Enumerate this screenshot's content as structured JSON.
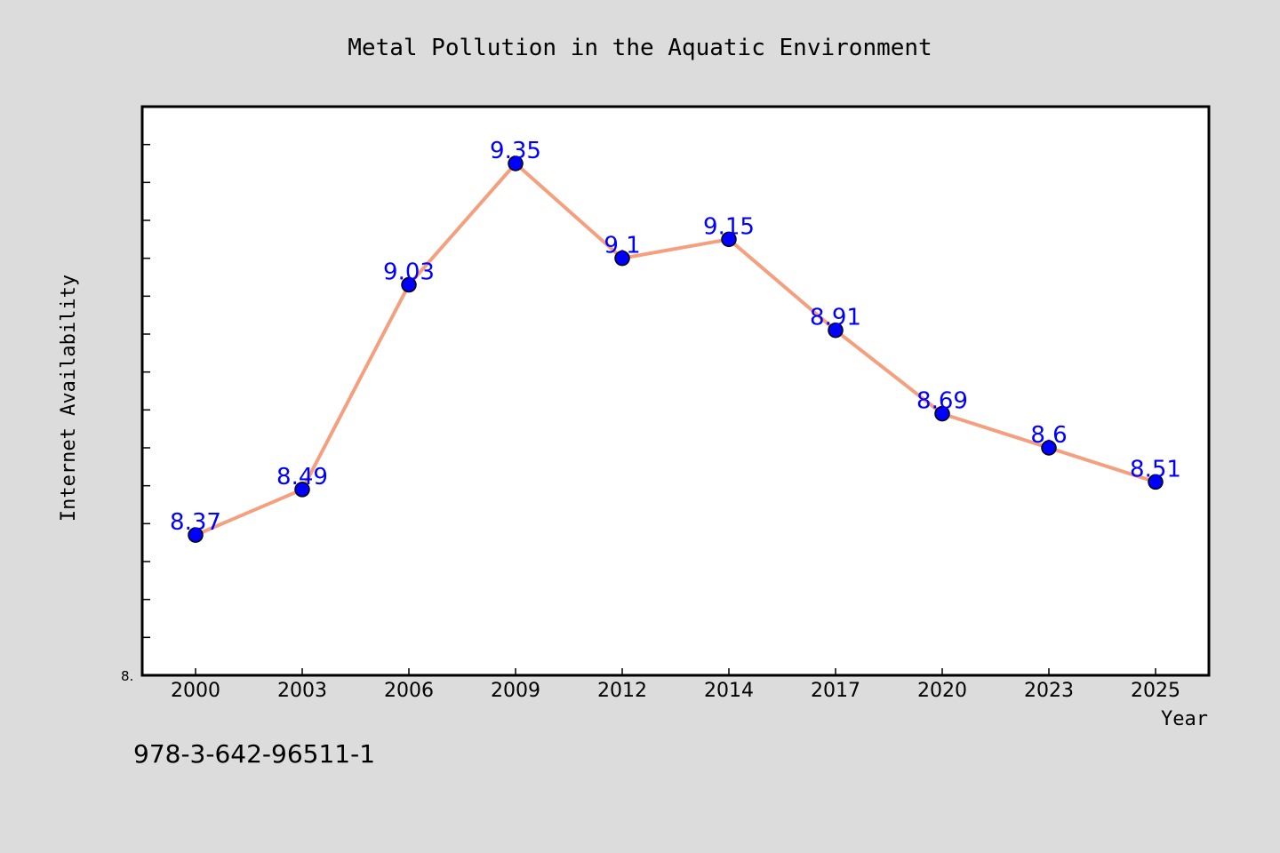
{
  "chart_data": {
    "type": "line",
    "title": "Metal Pollution in the Aquatic Environment",
    "xlabel": "Year",
    "ylabel": "Internet Availability",
    "categories": [
      "2000",
      "2003",
      "2006",
      "2009",
      "2012",
      "2014",
      "2017",
      "2020",
      "2023",
      "2025"
    ],
    "series": [
      {
        "values": [
          8.37,
          8.49,
          9.03,
          9.35,
          9.1,
          9.15,
          8.91,
          8.69,
          8.6,
          8.51
        ]
      }
    ],
    "data_labels": [
      "8.37",
      "8.49",
      "9.03",
      "9.35",
      "9.1",
      "9.15",
      "8.91",
      "8.69",
      "8.6",
      "8.51"
    ],
    "y_tick_label": "8.",
    "ylim": [
      8.0,
      9.5
    ],
    "grid": false,
    "line_color": "#f4a07e",
    "marker_color": "#0000ff",
    "label_color": "#0000ff"
  },
  "footer": {
    "isbn": "978-3-642-96511-1"
  }
}
